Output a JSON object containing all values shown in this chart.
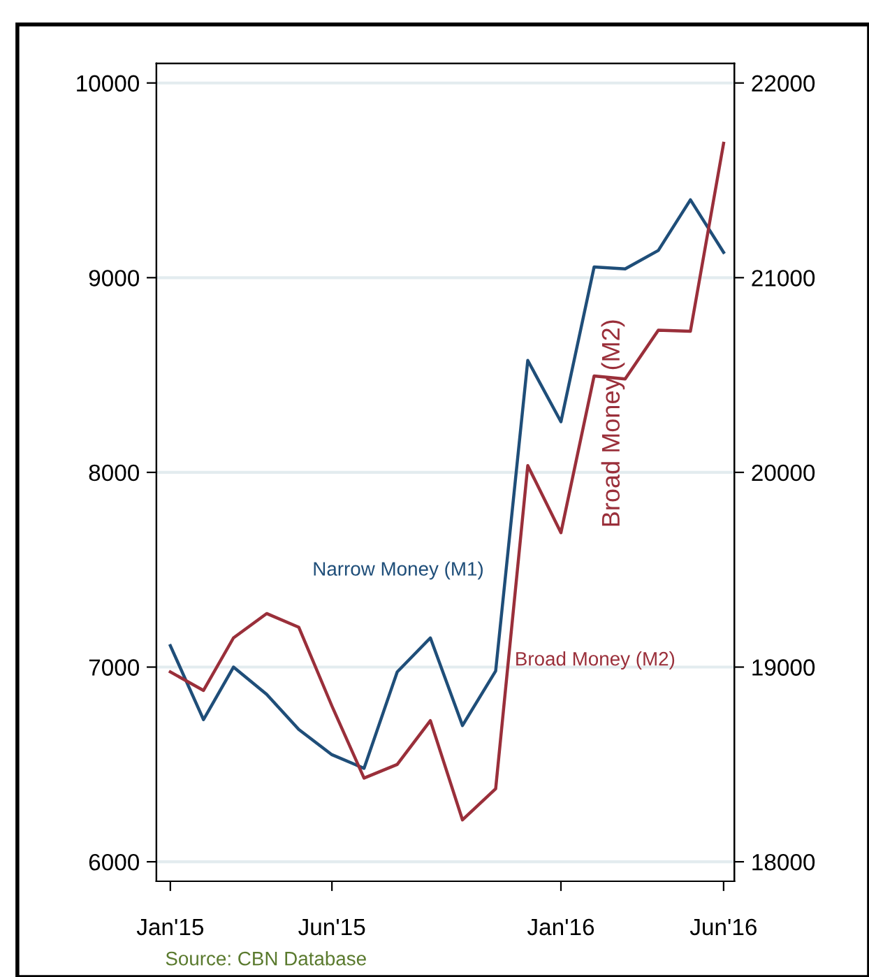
{
  "chart_data": {
    "type": "line",
    "y2label": "Broad Money (M2)",
    "x": [
      "2015-01",
      "2015-02",
      "2015-03",
      "2015-04",
      "2015-05",
      "2015-06",
      "2015-07",
      "2015-08",
      "2015-09",
      "2015-10",
      "2015-11",
      "2015-12",
      "2016-01",
      "2016-02",
      "2016-03",
      "2016-04",
      "2016-05",
      "2016-06"
    ],
    "series": [
      {
        "name": "Narrow Money (M1)",
        "color": "#1f4e79",
        "values": [
          7110,
          6730,
          7000,
          6860,
          6680,
          6550,
          6480,
          6975,
          7150,
          6700,
          6980,
          8575,
          8260,
          9055,
          9045,
          9140,
          9400,
          9130
        ]
      },
      {
        "name": "Broad Money (M2)",
        "color": "#9a2f3a",
        "axis": "y2",
        "values": [
          18975,
          18880,
          19150,
          19275,
          19205,
          18800,
          18430,
          18500,
          18725,
          18215,
          18375,
          20035,
          19690,
          20495,
          20480,
          20730,
          20725,
          21690
        ]
      }
    ],
    "xlim": [
      "2014-12-19",
      "2016-06-11"
    ],
    "xticks": [
      {
        "value": "2015-01",
        "label": "Jan'15"
      },
      {
        "value": "2015-06",
        "label": "Jun'15"
      },
      {
        "value": "2016-01",
        "label": "Jan'16"
      },
      {
        "value": "2016-06",
        "label": "Jun'16"
      }
    ],
    "ylim": [
      5900,
      10100
    ],
    "yticks": [
      6000,
      7000,
      8000,
      9000,
      10000
    ],
    "y2lim": [
      17900,
      22100
    ],
    "y2ticks": [
      18000,
      19000,
      20000,
      21000,
      22000
    ],
    "grid": "y",
    "legend": false,
    "line_style": "solid",
    "marker": "none",
    "annotations": [
      "Source: CBN Database"
    ]
  }
}
